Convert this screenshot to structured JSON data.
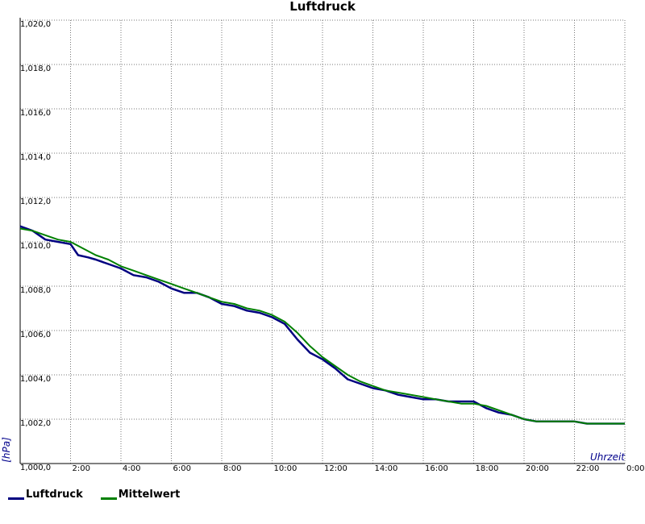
{
  "chart_data": {
    "type": "line",
    "title": "Luftdruck",
    "xlabel": "Uhrzeit",
    "ylabel": "[hPa]",
    "xlim": [
      0,
      24
    ],
    "ylim": [
      1000,
      1020
    ],
    "x_ticks": [
      0,
      2,
      4,
      6,
      8,
      10,
      12,
      14,
      16,
      18,
      20,
      22,
      24
    ],
    "x_tick_labels": [
      "",
      "2:00",
      "4:00",
      "6:00",
      "8:00",
      "10:00",
      "12:00",
      "14:00",
      "16:00",
      "18:00",
      "20:00",
      "22:00",
      "0:00"
    ],
    "y_ticks": [
      1000,
      1002,
      1004,
      1006,
      1008,
      1010,
      1012,
      1014,
      1016,
      1018,
      1020
    ],
    "y_tick_labels": [
      "1,000,0",
      "1,002,0",
      "1,004,0",
      "1,006,0",
      "1,008,0",
      "1,010,0",
      "1,012,0",
      "1,014,0",
      "1,016,0",
      "1,018,0",
      "1,020,0"
    ],
    "grid": true,
    "legend_position": "bottom-left",
    "series": [
      {
        "name": "Luftdruck",
        "color": "#000080",
        "x": [
          0,
          0.5,
          1.0,
          1.5,
          2.0,
          2.3,
          2.7,
          3.0,
          3.5,
          4.0,
          4.5,
          5.0,
          5.5,
          6.0,
          6.5,
          7.0,
          7.5,
          8.0,
          8.5,
          9.0,
          9.5,
          10.0,
          10.5,
          11.0,
          11.5,
          12.0,
          12.5,
          13.0,
          13.5,
          14.0,
          14.5,
          15.0,
          15.5,
          16.0,
          16.5,
          17.0,
          17.5,
          18.0,
          18.5,
          19.0,
          19.5,
          20.0,
          20.5,
          21.0,
          21.5,
          22.0,
          22.5,
          23.0,
          23.5,
          24.0
        ],
        "y": [
          1010.7,
          1010.5,
          1010.1,
          1010.0,
          1009.9,
          1009.4,
          1009.3,
          1009.2,
          1009.0,
          1008.8,
          1008.5,
          1008.4,
          1008.2,
          1007.9,
          1007.7,
          1007.7,
          1007.5,
          1007.2,
          1007.1,
          1006.9,
          1006.8,
          1006.6,
          1006.3,
          1005.6,
          1005.0,
          1004.7,
          1004.3,
          1003.8,
          1003.6,
          1003.4,
          1003.3,
          1003.1,
          1003.0,
          1002.9,
          1002.9,
          1002.8,
          1002.8,
          1002.8,
          1002.5,
          1002.3,
          1002.2,
          1002.0,
          1001.9,
          1001.9,
          1001.9,
          1001.9,
          1001.8,
          1001.8,
          1001.8,
          1001.8
        ]
      },
      {
        "name": "Mittelwert",
        "color": "#008000",
        "x": [
          0,
          0.5,
          1.0,
          1.5,
          2.0,
          2.5,
          3.0,
          3.5,
          4.0,
          4.5,
          5.0,
          5.5,
          6.0,
          6.5,
          7.0,
          7.5,
          8.0,
          8.5,
          9.0,
          9.5,
          10.0,
          10.5,
          11.0,
          11.5,
          12.0,
          12.5,
          13.0,
          13.5,
          14.0,
          14.5,
          15.0,
          15.5,
          16.0,
          16.5,
          17.0,
          17.5,
          18.0,
          18.5,
          19.0,
          19.5,
          20.0,
          20.5,
          21.0,
          21.5,
          22.0,
          22.5,
          23.0,
          23.5,
          24.0
        ],
        "y": [
          1010.6,
          1010.5,
          1010.3,
          1010.1,
          1010.0,
          1009.7,
          1009.4,
          1009.2,
          1008.9,
          1008.7,
          1008.5,
          1008.3,
          1008.1,
          1007.9,
          1007.7,
          1007.5,
          1007.3,
          1007.2,
          1007.0,
          1006.9,
          1006.7,
          1006.4,
          1005.9,
          1005.3,
          1004.8,
          1004.4,
          1004.0,
          1003.7,
          1003.5,
          1003.3,
          1003.2,
          1003.1,
          1003.0,
          1002.9,
          1002.8,
          1002.7,
          1002.7,
          1002.6,
          1002.4,
          1002.2,
          1002.0,
          1001.9,
          1001.9,
          1001.9,
          1001.9,
          1001.8,
          1001.8,
          1001.8,
          1001.8
        ]
      }
    ]
  }
}
